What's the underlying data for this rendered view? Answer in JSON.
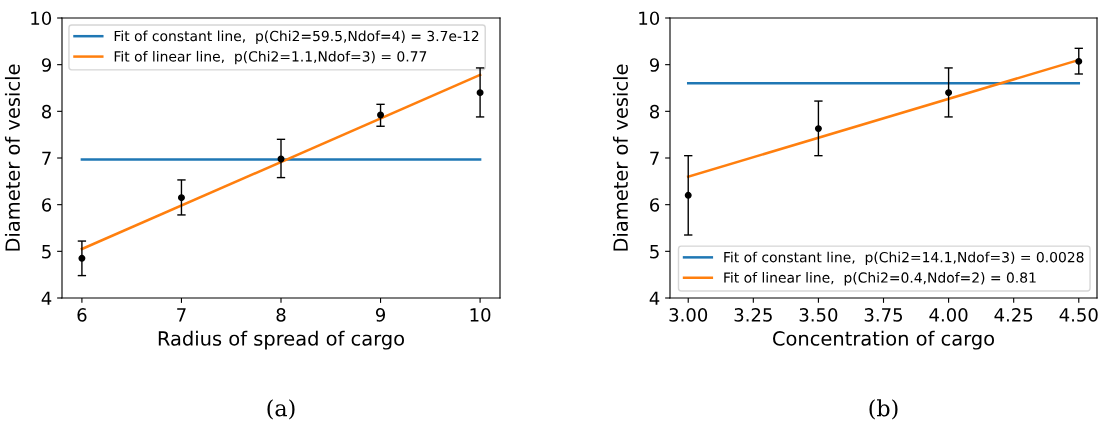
{
  "chart_data": [
    {
      "type": "scatter",
      "xlabel": "Radius of spread of cargo",
      "ylabel": "Diameter of vesicle",
      "xlim": [
        5.8,
        10.2
      ],
      "ylim": [
        4,
        10
      ],
      "xticks": [
        6,
        7,
        8,
        9,
        10
      ],
      "yticks": [
        4,
        5,
        6,
        7,
        8,
        9,
        10
      ],
      "legend": "top left",
      "annotations": [
        "(a)"
      ],
      "series": [
        {
          "name": "Fit of constant line,  p(Chi2=59.5,Ndof=4) = 3.7e-12",
          "type": "line",
          "color": "#1f77b4",
          "x": [
            6,
            10
          ],
          "values": [
            6.97,
            6.97
          ]
        },
        {
          "name": "Fit of linear line,  p(Chi2=1.1,Ndof=3) = 0.77",
          "type": "line",
          "color": "#ff7f0e",
          "x": [
            6,
            10
          ],
          "values": [
            5.05,
            8.78
          ]
        },
        {
          "color": "#000000",
          "marker": "circle",
          "x": [
            6,
            7,
            8,
            9,
            10
          ],
          "values": [
            4.85,
            6.15,
            6.98,
            7.92,
            8.4
          ],
          "errors": [
            [
              4.48,
              5.22
            ],
            [
              5.78,
              6.53
            ],
            [
              6.58,
              7.4
            ],
            [
              7.68,
              8.15
            ],
            [
              7.88,
              8.93
            ]
          ]
        }
      ]
    },
    {
      "type": "scatter",
      "xlabel": "Concentration of cargo",
      "ylabel": "Diameter of vesicle",
      "xlim": [
        2.93,
        4.57
      ],
      "ylim": [
        4,
        10
      ],
      "xticks": [
        {
          "value": 3,
          "label": "3.00"
        },
        3.25,
        {
          "value": 3.5,
          "label": "3.50"
        },
        3.75,
        {
          "value": 4,
          "label": "4.00"
        },
        4.25,
        {
          "value": 4.5,
          "label": "4.50"
        }
      ],
      "yticks": [
        4,
        5,
        6,
        7,
        8,
        9,
        10
      ],
      "legend": "bottom right",
      "annotations": [
        "(b)"
      ],
      "series": [
        {
          "name": "Fit of constant line,  p(Chi2=14.1,Ndof=3) = 0.0028",
          "type": "line",
          "color": "#1f77b4",
          "x": [
            3,
            4.5
          ],
          "values": [
            8.6,
            8.6
          ]
        },
        {
          "name": "Fit of linear line,  p(Chi2=0.4,Ndof=2) = 0.81",
          "type": "line",
          "color": "#ff7f0e",
          "x": [
            3,
            4.5
          ],
          "values": [
            6.6,
            9.1
          ]
        },
        {
          "color": "#000000",
          "marker": "circle",
          "x": [
            3,
            3.5,
            4,
            4.5
          ],
          "values": [
            6.2,
            7.63,
            8.4,
            9.07
          ],
          "errors": [
            [
              5.35,
              7.05
            ],
            [
              7.05,
              8.22
            ],
            [
              7.88,
              8.93
            ],
            [
              8.8,
              9.35
            ]
          ]
        }
      ]
    }
  ]
}
